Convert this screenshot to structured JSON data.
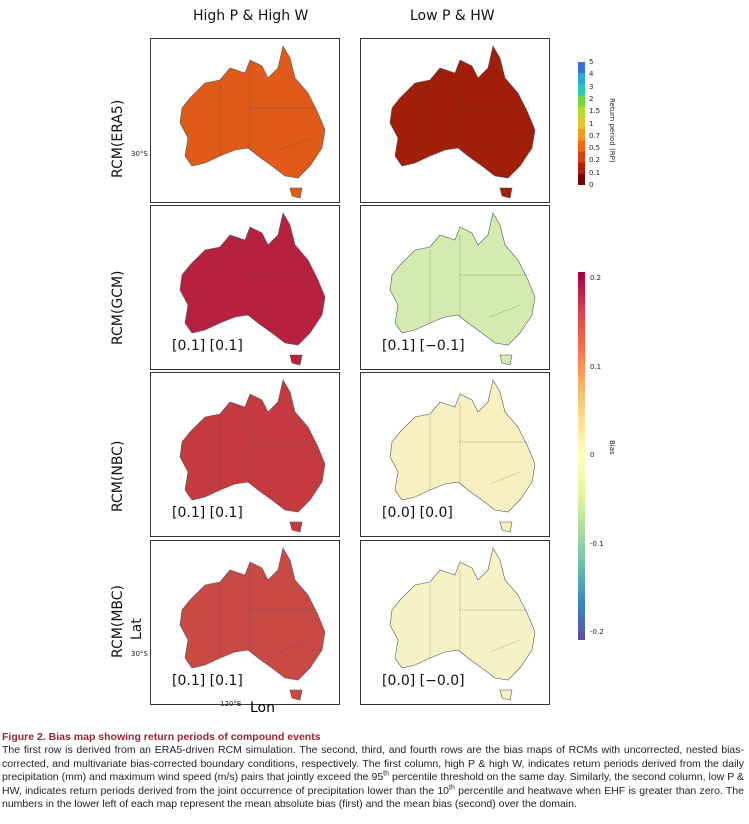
{
  "columns": [
    "High P & High W",
    "Low P & HW"
  ],
  "rows": [
    {
      "label": "RCM(ERA5)",
      "maps": [
        {
          "fill": "#e05a1a",
          "stat": ""
        },
        {
          "fill": "#a11e08",
          "stat": ""
        }
      ]
    },
    {
      "label": "RCM(GCM)",
      "maps": [
        {
          "fill": "#b8203f",
          "stat": "[0.1] [0.1]"
        },
        {
          "fill": "#d3ebb0",
          "stat": "[0.1] [−0.1]"
        }
      ]
    },
    {
      "label": "RCM(NBC)",
      "maps": [
        {
          "fill": "#c53a3f",
          "stat": "[0.1] [0.1]"
        },
        {
          "fill": "#f7f0c0",
          "stat": "[0.0] [0.0]"
        }
      ]
    },
    {
      "label": "RCM(MBC)",
      "maps": [
        {
          "fill": "#c94a45",
          "stat": "[0.1] [0.1]"
        },
        {
          "fill": "#f5f3c6",
          "stat": "[0.0] [−0.0]"
        }
      ]
    }
  ],
  "axes": {
    "lat_label": "Lat",
    "lon_label": "Lon",
    "lat_tick": "30°S",
    "lon_tick": "120°E"
  },
  "colorbar_rp": {
    "label": "Return period (RP)",
    "ticks": [
      "5",
      "4",
      "3",
      "2",
      "1.5",
      "1",
      "0.7",
      "0.5",
      "0.2",
      "0.1",
      "0"
    ],
    "colors": [
      "#3a6fd6",
      "#2aa6d8",
      "#2bc9a8",
      "#6fd64a",
      "#b5dc2c",
      "#ecc52c",
      "#f39a22",
      "#ee6a17",
      "#d8400f",
      "#b01e08",
      "#6e0a02"
    ]
  },
  "colorbar_bias": {
    "label": "Bias",
    "ticks": [
      "0.2",
      "0.1",
      "0",
      "-0.1",
      "-0.2"
    ]
  },
  "caption": {
    "title": "Figure 2.  Bias map showing return periods of compound events",
    "p1": "The first row is derived from an ERA5-driven RCM simulation. The second, third, and fourth rows are the bias maps of RCMs with uncorrected, nested bias-corrected, and multivariate bias-corrected boundary conditions, respectively. The first column, high P & high W, indicates return periods derived from the daily precipitation (mm) and maximum wind speed (m/s) pairs that jointly exceed the 95",
    "sup1": "th",
    "p2": " percentile threshold on the same day. Similarly, the second column, low P & HW, indicates return periods derived from the joint occurrence of precipitation lower than the 10",
    "sup2": "th",
    "p3": " percentile and heatwave when EHF is greater than zero. The numbers in the lower left of each map represent the mean absolute bias (first) and the mean bias (second) over the domain."
  }
}
